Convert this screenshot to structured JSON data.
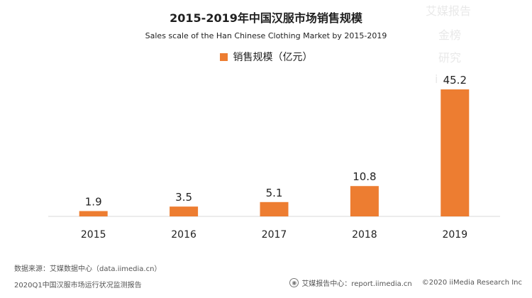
{
  "header": {
    "title": "2015-2019年中国汉服市场销售规模",
    "subtitle": "Sales scale of the Han Chinese Clothing Market by 2015-2019"
  },
  "watermark": {
    "lines": [
      "艾媒报告",
      "金榜",
      "研究",
      "i"
    ]
  },
  "chart_data": {
    "type": "bar",
    "title": "2015-2019年中国汉服市场销售规模",
    "subtitle": "Sales scale of the Han Chinese Clothing Market by 2015-2019",
    "categories": [
      "2015",
      "2016",
      "2017",
      "2018",
      "2019"
    ],
    "series": [
      {
        "name": "销售规模（亿元）",
        "values": [
          1.9,
          3.5,
          5.1,
          10.8,
          45.2
        ],
        "color": "#ED7D31"
      }
    ],
    "data_labels": [
      "1.9",
      "3.5",
      "5.1",
      "10.8",
      "45.2"
    ],
    "xlabel": "",
    "ylabel": "",
    "ylim": [
      0,
      50
    ],
    "grid": false,
    "legend_position": "top-center"
  },
  "footer": {
    "source": "数据来源：艾媒数据中心（data.iimedia.cn）",
    "report": "2020Q1中国汉服市场运行状况监测报告",
    "report_center": "艾媒报告中心：report.iimedia.cn",
    "copyright": "©2020  iiMedia Research  Inc"
  }
}
